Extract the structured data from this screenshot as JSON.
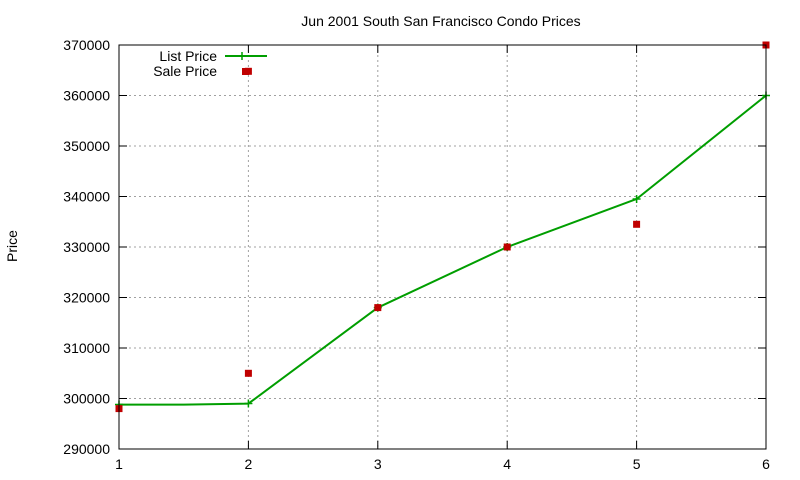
{
  "chart_data": {
    "type": "line",
    "title": "Jun 2001 South San Francisco Condo Prices",
    "xlabel": "",
    "ylabel": "Price",
    "xlim": [
      1,
      6
    ],
    "ylim": [
      290000,
      370000
    ],
    "x_ticks": [
      1,
      2,
      3,
      4,
      5,
      6
    ],
    "y_ticks": [
      290000,
      300000,
      310000,
      320000,
      330000,
      340000,
      350000,
      360000,
      370000
    ],
    "grid": true,
    "legend_position": "top-left",
    "series": [
      {
        "name": "List Price",
        "style": "line-with-plus-markers",
        "color": "#009e00",
        "x": [
          1,
          1.5,
          2,
          3,
          4,
          5,
          6
        ],
        "y": [
          298800,
          298800,
          299000,
          318000,
          330000,
          339500,
          360000
        ]
      },
      {
        "name": "Sale Price",
        "style": "square-points",
        "color": "#c00000",
        "x": [
          1,
          2,
          2,
          3,
          4,
          5,
          6
        ],
        "y": [
          298000,
          305000,
          364800,
          318000,
          330000,
          334500,
          370000
        ]
      }
    ]
  }
}
